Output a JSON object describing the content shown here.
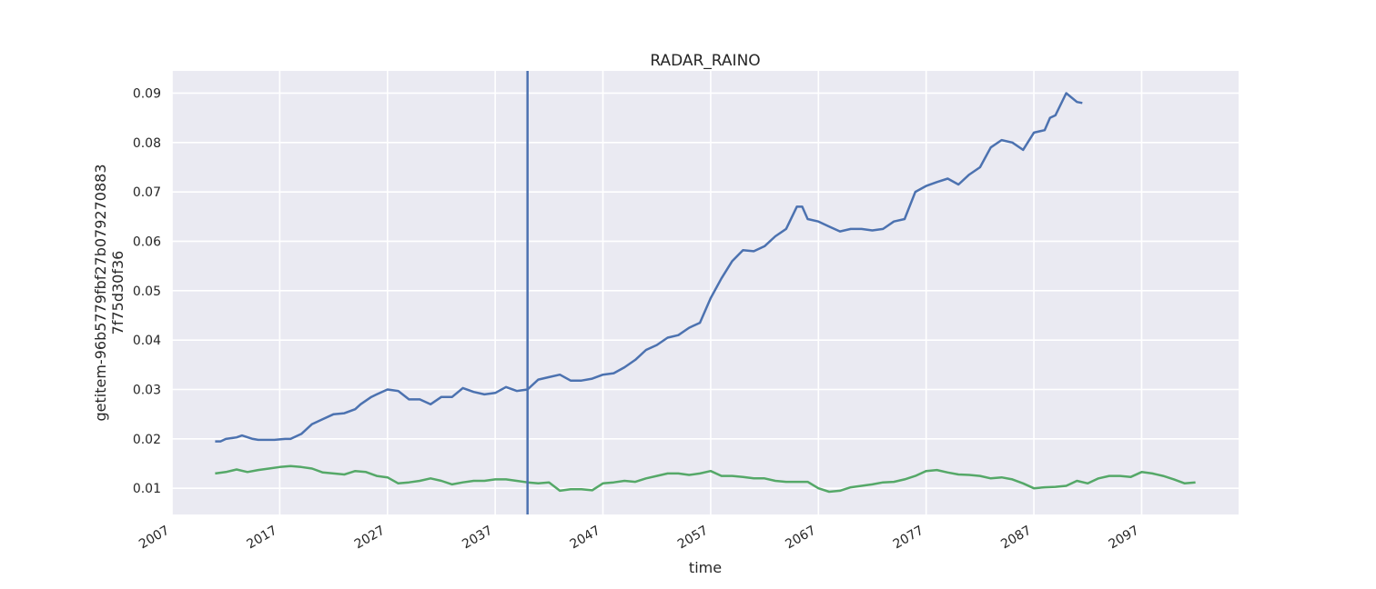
{
  "chart_data": {
    "type": "line",
    "title": "RADAR_RAINO",
    "xlabel": "time",
    "ylabel": [
      "getitem-96b5779fbf27b079270883",
      "7f75d30f36"
    ],
    "xlim": [
      2007,
      2106
    ],
    "ylim": [
      0.0047,
      0.0945
    ],
    "x_ticks": [
      2007,
      2017,
      2027,
      2037,
      2047,
      2057,
      2067,
      2077,
      2087,
      2097
    ],
    "y_ticks": [
      0.01,
      0.02,
      0.03,
      0.04,
      0.05,
      0.06,
      0.07,
      0.08,
      0.09
    ],
    "y_tick_labels": [
      "0.01",
      "0.02",
      "0.03",
      "0.04",
      "0.05",
      "0.06",
      "0.07",
      "0.08",
      "0.09"
    ],
    "vline": {
      "x": 2040,
      "color": "#4c72b0"
    },
    "grid": true,
    "background": "#eaeaf2",
    "series": [
      {
        "color": "#4c72b0",
        "x": [
          2011.0,
          2011.5,
          2012.0,
          2013.0,
          2013.5,
          2014.5,
          2015.0,
          2016.5,
          2017.5,
          2018.0,
          2019.0,
          2020.0,
          2021.0,
          2022.0,
          2023.0,
          2024.0,
          2024.5,
          2025.5,
          2026.0,
          2027.0,
          2028.0,
          2029.0,
          2030.0,
          2031.0,
          2032.0,
          2033.0,
          2034.0,
          2035.0,
          2036.0,
          2037.0,
          2038.0,
          2039.0,
          2040.0,
          2041.0,
          2042.0,
          2043.0,
          2044.0,
          2045.0,
          2046.0,
          2047.0,
          2048.0,
          2049.0,
          2050.0,
          2051.0,
          2052.0,
          2053.0,
          2054.0,
          2055.0,
          2056.0,
          2057.0,
          2058.0,
          2059.0,
          2060.0,
          2061.0,
          2062.0,
          2063.0,
          2064.0,
          2065.0,
          2065.5,
          2066.0,
          2067.0,
          2068.0,
          2069.0,
          2070.0,
          2071.0,
          2072.0,
          2073.0,
          2074.0,
          2075.0,
          2076.0,
          2077.0,
          2078.0,
          2079.0,
          2080.0,
          2081.0,
          2082.0,
          2083.0,
          2084.0,
          2085.0,
          2086.0,
          2087.0,
          2088.0,
          2088.5,
          2089.0,
          2090.0,
          2091.0,
          2091.5
        ],
        "y": [
          0.0195,
          0.0195,
          0.02,
          0.0203,
          0.0207,
          0.02,
          0.0198,
          0.0198,
          0.02,
          0.02,
          0.021,
          0.023,
          0.024,
          0.025,
          0.0252,
          0.026,
          0.027,
          0.0285,
          0.029,
          0.03,
          0.0297,
          0.028,
          0.028,
          0.027,
          0.0285,
          0.0285,
          0.0303,
          0.0295,
          0.029,
          0.0293,
          0.0305,
          0.0297,
          0.03,
          0.032,
          0.0325,
          0.033,
          0.0318,
          0.0318,
          0.0322,
          0.033,
          0.0333,
          0.0345,
          0.036,
          0.038,
          0.039,
          0.0405,
          0.041,
          0.0425,
          0.0435,
          0.0485,
          0.0525,
          0.056,
          0.0582,
          0.058,
          0.059,
          0.061,
          0.0625,
          0.067,
          0.067,
          0.0645,
          0.064,
          0.063,
          0.062,
          0.0625,
          0.0625,
          0.0622,
          0.0625,
          0.064,
          0.0645,
          0.07,
          0.0712,
          0.072,
          0.0727,
          0.0715,
          0.0735,
          0.075,
          0.079,
          0.0805,
          0.08,
          0.0785,
          0.082,
          0.0825,
          0.085,
          0.0855,
          0.09,
          0.0882,
          0.088
        ],
        "vals_note": ""
      },
      {
        "color": "#55a868",
        "x": [
          2011.0,
          2012.0,
          2013.0,
          2014.0,
          2015.0,
          2016.0,
          2017.0,
          2018.0,
          2019.0,
          2020.0,
          2021.0,
          2022.0,
          2023.0,
          2024.0,
          2025.0,
          2026.0,
          2027.0,
          2028.0,
          2029.0,
          2030.0,
          2031.0,
          2032.0,
          2033.0,
          2034.0,
          2035.0,
          2036.0,
          2037.0,
          2038.0,
          2039.0,
          2040.0,
          2041.0,
          2042.0,
          2043.0,
          2044.0,
          2045.0,
          2046.0,
          2047.0,
          2048.0,
          2049.0,
          2050.0,
          2051.0,
          2052.0,
          2053.0,
          2054.0,
          2055.0,
          2056.0,
          2057.0,
          2058.0,
          2059.0,
          2060.0,
          2061.0,
          2062.0,
          2063.0,
          2064.0,
          2065.0,
          2066.0,
          2067.0,
          2068.0,
          2069.0,
          2070.0,
          2071.0,
          2072.0,
          2073.0,
          2074.0,
          2075.0,
          2076.0,
          2077.0,
          2078.0,
          2079.0,
          2080.0,
          2081.0,
          2082.0,
          2083.0,
          2084.0,
          2085.0,
          2086.0,
          2087.0,
          2088.0,
          2089.0,
          2090.0,
          2091.0,
          2092.0,
          2093.0,
          2094.0,
          2095.0,
          2096.0,
          2097.0,
          2098.0,
          2099.0,
          2100.0,
          2101.0,
          2102.0
        ],
        "y": [
          0.013,
          0.0133,
          0.0138,
          0.0133,
          0.0137,
          0.014,
          0.0143,
          0.0145,
          0.0143,
          0.014,
          0.0132,
          0.013,
          0.0128,
          0.0135,
          0.0133,
          0.0125,
          0.0122,
          0.011,
          0.0112,
          0.0115,
          0.012,
          0.0115,
          0.0108,
          0.0112,
          0.0115,
          0.0115,
          0.0118,
          0.0118,
          0.0115,
          0.0112,
          0.011,
          0.0112,
          0.0095,
          0.0098,
          0.0098,
          0.0096,
          0.011,
          0.0112,
          0.0115,
          0.0113,
          0.012,
          0.0125,
          0.013,
          0.013,
          0.0127,
          0.013,
          0.0135,
          0.0125,
          0.0125,
          0.0123,
          0.012,
          0.012,
          0.0115,
          0.0113,
          0.0113,
          0.0113,
          0.01,
          0.0093,
          0.0095,
          0.0102,
          0.0105,
          0.0108,
          0.0112,
          0.0113,
          0.0118,
          0.0125,
          0.0135,
          0.0137,
          0.0132,
          0.0128,
          0.0127,
          0.0125,
          0.012,
          0.0122,
          0.0118,
          0.011,
          0.01,
          0.0102,
          0.0103,
          0.0105,
          0.0115,
          0.011,
          0.012,
          0.0125,
          0.0125,
          0.0123,
          0.0133,
          0.013,
          0.0125,
          0.0118,
          0.011,
          0.0112
        ],
        "vals_note": ""
      }
    ]
  }
}
